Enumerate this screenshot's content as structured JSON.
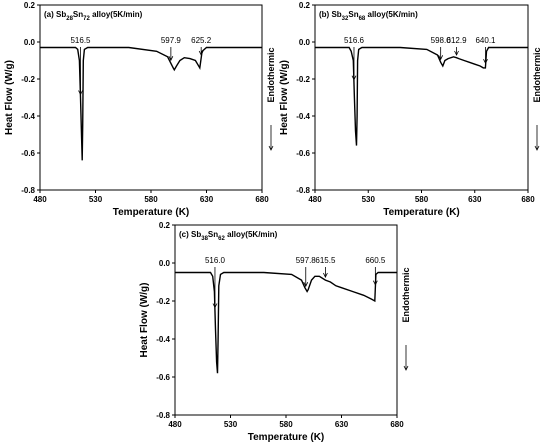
{
  "chart_data": [
    {
      "type": "line",
      "panel_label": "(a)",
      "title_parts": {
        "pre": "Sb",
        "sub1": "28",
        "mid": "Sn",
        "sub2": "72",
        "post": " alloy(5K/min)"
      },
      "xlabel": "Temperature (K)",
      "ylabel": "Heat Flow (W/g)",
      "side_label": "Endothermic",
      "xlim": [
        480,
        680
      ],
      "ylim": [
        -0.8,
        0.2
      ],
      "xticks": [
        480,
        530,
        580,
        630,
        680
      ],
      "yticks": [
        -0.8,
        -0.6,
        -0.4,
        -0.2,
        0.0,
        0.2
      ],
      "series": [
        {
          "x": [
            480,
            512,
            514,
            515.5,
            516.5,
            517.5,
            518,
            518.5,
            519,
            520,
            523,
            530,
            560,
            585,
            595,
            600,
            601,
            603,
            606,
            610,
            615,
            620,
            622,
            624,
            626,
            630,
            650,
            680
          ],
          "y": [
            -0.03,
            -0.03,
            -0.04,
            -0.1,
            -0.3,
            -0.52,
            -0.64,
            -0.45,
            -0.1,
            -0.04,
            -0.03,
            -0.03,
            -0.03,
            -0.05,
            -0.08,
            -0.14,
            -0.15,
            -0.13,
            -0.1,
            -0.085,
            -0.09,
            -0.1,
            -0.12,
            -0.14,
            -0.05,
            -0.03,
            -0.03,
            -0.03
          ]
        }
      ],
      "peaks": [
        {
          "x": 516.5,
          "label": "516.5"
        },
        {
          "x": 597.9,
          "label": "597.9"
        },
        {
          "x": 625.2,
          "label": "625.2"
        }
      ]
    },
    {
      "type": "line",
      "panel_label": "(b)",
      "title_parts": {
        "pre": "Sb",
        "sub1": "32",
        "mid": "Sn",
        "sub2": "68",
        "post": " alloy(5K/min)"
      },
      "xlabel": "Temperature (K)",
      "ylabel": "Heat Flow (W/g)",
      "side_label": "Endothermic",
      "xlim": [
        480,
        680
      ],
      "ylim": [
        -0.8,
        0.2
      ],
      "xticks": [
        480,
        530,
        580,
        630,
        680
      ],
      "yticks": [
        -0.8,
        -0.6,
        -0.4,
        -0.2,
        0.0,
        0.2
      ],
      "series": [
        {
          "x": [
            480,
            512,
            514,
            516,
            517,
            518,
            519,
            519.5,
            520,
            521,
            524,
            530,
            560,
            585,
            595,
            598,
            600,
            602,
            605,
            610,
            612.9,
            615,
            620,
            625,
            630,
            635,
            638,
            640,
            641,
            643,
            650,
            680
          ],
          "y": [
            -0.03,
            -0.03,
            -0.05,
            -0.1,
            -0.3,
            -0.48,
            -0.56,
            -0.4,
            -0.1,
            -0.04,
            -0.03,
            -0.03,
            -0.03,
            -0.04,
            -0.07,
            -0.11,
            -0.13,
            -0.1,
            -0.09,
            -0.08,
            -0.085,
            -0.09,
            -0.1,
            -0.11,
            -0.12,
            -0.13,
            -0.14,
            -0.14,
            -0.05,
            -0.03,
            -0.03,
            -0.03
          ]
        }
      ],
      "peaks": [
        {
          "x": 516.6,
          "label": "516.6"
        },
        {
          "x": 598.0,
          "label": "598.0"
        },
        {
          "x": 612.9,
          "label": "612.9"
        },
        {
          "x": 640.1,
          "label": "640.1"
        }
      ]
    },
    {
      "type": "line",
      "panel_label": "(c)",
      "title_parts": {
        "pre": "Sb",
        "sub1": "38",
        "mid": "Sn",
        "sub2": "62",
        "post": " alloy(5K/min)"
      },
      "xlabel": "Temperature (K)",
      "ylabel": "Heat Flow (W/g)",
      "side_label": "Endothermic",
      "xlim": [
        480,
        680
      ],
      "ylim": [
        -0.8,
        0.2
      ],
      "xticks": [
        480,
        530,
        580,
        630,
        680
      ],
      "yticks": [
        -0.8,
        -0.6,
        -0.4,
        -0.2,
        0.0,
        0.2
      ],
      "series": [
        {
          "x": [
            480,
            512,
            514,
            515.5,
            516.5,
            517.5,
            518.3,
            518.8,
            519.5,
            521,
            524,
            530,
            560,
            585,
            594,
            597,
            599,
            600,
            603,
            606,
            610,
            615.5,
            620,
            625,
            630,
            640,
            650,
            657,
            660,
            661,
            663,
            670,
            680
          ],
          "y": [
            -0.05,
            -0.05,
            -0.07,
            -0.15,
            -0.35,
            -0.52,
            -0.58,
            -0.4,
            -0.12,
            -0.06,
            -0.05,
            -0.05,
            -0.05,
            -0.06,
            -0.09,
            -0.13,
            -0.15,
            -0.14,
            -0.09,
            -0.07,
            -0.07,
            -0.09,
            -0.1,
            -0.12,
            -0.13,
            -0.15,
            -0.17,
            -0.19,
            -0.2,
            -0.06,
            -0.05,
            -0.05,
            -0.05
          ]
        }
      ],
      "peaks": [
        {
          "x": 516.0,
          "label": "516.0"
        },
        {
          "x": 597.8,
          "label": "597.8"
        },
        {
          "x": 615.5,
          "label": "615.5"
        },
        {
          "x": 660.5,
          "label": "660.5"
        }
      ]
    }
  ]
}
